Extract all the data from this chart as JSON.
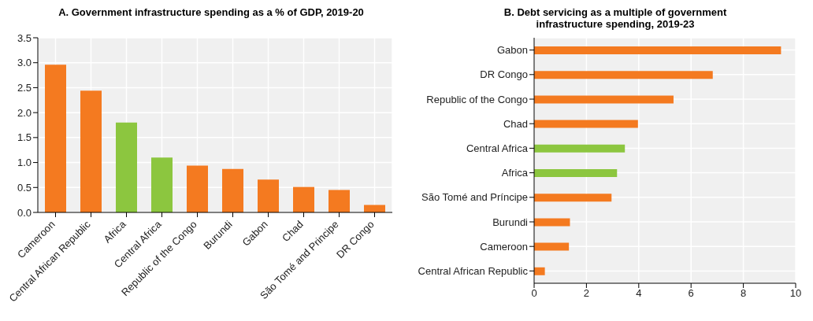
{
  "chart_data": [
    {
      "type": "bar",
      "title": "A. Government infrastructure spending as a % of GDP, 2019-20",
      "categories": [
        "Cameroon",
        "Central African Republic",
        "Africa",
        "Central Africa",
        "Republic of the Congo",
        "Burundi",
        "Gabon",
        "Chad",
        "São Tomé and Principe",
        "DR Congo"
      ],
      "values": [
        2.96,
        2.44,
        1.8,
        1.1,
        0.94,
        0.87,
        0.66,
        0.51,
        0.45,
        0.15
      ],
      "colors": [
        "#f47a20",
        "#f47a20",
        "#8cc63f",
        "#8cc63f",
        "#f47a20",
        "#f47a20",
        "#f47a20",
        "#f47a20",
        "#f47a20",
        "#f47a20"
      ],
      "ylim": [
        0,
        3.5
      ],
      "yticks": [
        {
          "value": 0,
          "label": "0.0"
        },
        {
          "value": 0.5,
          "label": "0.5"
        },
        {
          "value": 1,
          "label": "1.0"
        },
        {
          "value": 1.5,
          "label": "1.5"
        },
        {
          "value": 2,
          "label": "2.0"
        },
        {
          "value": 2.5,
          "label": "2.5"
        },
        {
          "value": 3,
          "label": "3.0"
        },
        {
          "value": 3.5,
          "label": "3.5"
        }
      ],
      "grid": true
    },
    {
      "type": "bar",
      "orientation": "horizontal",
      "title": "B. Debt servicing as a multiple of government infrastructure spending, 2019-23",
      "categories": [
        "Gabon",
        "DR Congo",
        "Republic of the Congo",
        "Chad",
        "Central Africa",
        "Africa",
        "São Tomé and Príncipe",
        "Burundi",
        "Cameroon",
        "Central African Republic"
      ],
      "values": [
        9.44,
        6.83,
        5.33,
        3.97,
        3.47,
        3.17,
        2.96,
        1.37,
        1.33,
        0.41
      ],
      "colors": [
        "#f47a20",
        "#f47a20",
        "#f47a20",
        "#f47a20",
        "#8cc63f",
        "#8cc63f",
        "#f47a20",
        "#f47a20",
        "#f47a20",
        "#f47a20"
      ],
      "xlim": [
        0,
        10
      ],
      "xticks": [
        0,
        2,
        4,
        6,
        8,
        10
      ],
      "grid": true
    }
  ]
}
